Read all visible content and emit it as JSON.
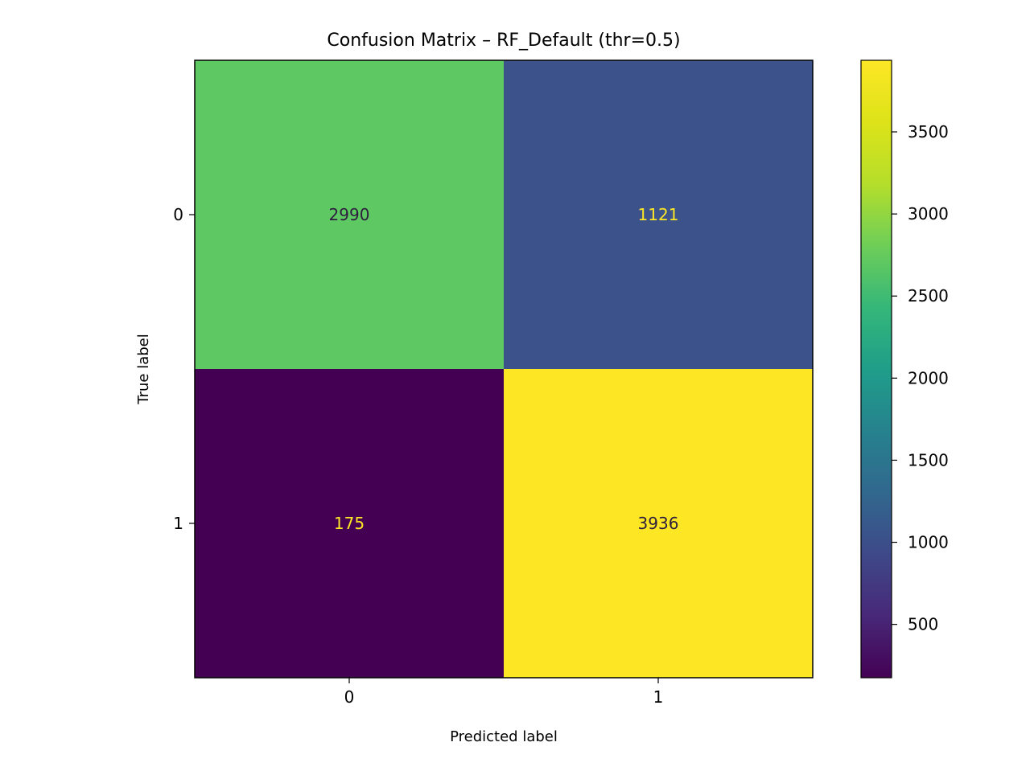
{
  "chart_data": {
    "type": "heatmap",
    "title": "Confusion Matrix – RF_Default (thr=0.5)",
    "xlabel": "Predicted label",
    "ylabel": "True label",
    "x_categories": [
      "0",
      "1"
    ],
    "y_categories": [
      "0",
      "1"
    ],
    "matrix": [
      [
        2990,
        1121
      ],
      [
        175,
        3936
      ]
    ],
    "colormap": "viridis",
    "colorbar": {
      "vmin": 175,
      "vmax": 3936,
      "ticks": [
        500,
        1000,
        1500,
        2000,
        2500,
        3000,
        3500
      ],
      "tick_labels": [
        "500",
        "1000",
        "1500",
        "2000",
        "2500",
        "3000",
        "3500"
      ]
    },
    "grid": false
  },
  "colors": {
    "cell_0_0": "#5ec962",
    "cell_0_1": "#3b528b",
    "cell_1_0": "#440154",
    "cell_1_1": "#fde725",
    "text_dark": "#2d1e3e",
    "text_light": "#fde725"
  }
}
